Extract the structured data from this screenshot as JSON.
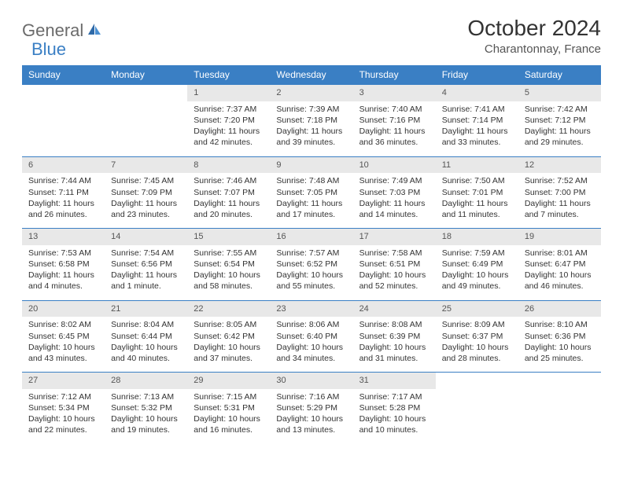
{
  "logo": {
    "general": "General",
    "blue": "Blue"
  },
  "title": "October 2024",
  "location": "Charantonnay, France",
  "colors": {
    "header_bg": "#3a7fc4",
    "header_fg": "#ffffff",
    "daynum_bg": "#e8e8e8",
    "rule": "#3a7fc4",
    "logo_gray": "#6b6b6b",
    "logo_blue": "#3a7fc4"
  },
  "weekdays": [
    "Sunday",
    "Monday",
    "Tuesday",
    "Wednesday",
    "Thursday",
    "Friday",
    "Saturday"
  ],
  "weeks": [
    [
      {
        "n": "",
        "l1": "",
        "l2": "",
        "l3": "",
        "l4": "",
        "empty": true
      },
      {
        "n": "",
        "l1": "",
        "l2": "",
        "l3": "",
        "l4": "",
        "empty": true
      },
      {
        "n": "1",
        "l1": "Sunrise: 7:37 AM",
        "l2": "Sunset: 7:20 PM",
        "l3": "Daylight: 11 hours",
        "l4": "and 42 minutes."
      },
      {
        "n": "2",
        "l1": "Sunrise: 7:39 AM",
        "l2": "Sunset: 7:18 PM",
        "l3": "Daylight: 11 hours",
        "l4": "and 39 minutes."
      },
      {
        "n": "3",
        "l1": "Sunrise: 7:40 AM",
        "l2": "Sunset: 7:16 PM",
        "l3": "Daylight: 11 hours",
        "l4": "and 36 minutes."
      },
      {
        "n": "4",
        "l1": "Sunrise: 7:41 AM",
        "l2": "Sunset: 7:14 PM",
        "l3": "Daylight: 11 hours",
        "l4": "and 33 minutes."
      },
      {
        "n": "5",
        "l1": "Sunrise: 7:42 AM",
        "l2": "Sunset: 7:12 PM",
        "l3": "Daylight: 11 hours",
        "l4": "and 29 minutes."
      }
    ],
    [
      {
        "n": "6",
        "l1": "Sunrise: 7:44 AM",
        "l2": "Sunset: 7:11 PM",
        "l3": "Daylight: 11 hours",
        "l4": "and 26 minutes."
      },
      {
        "n": "7",
        "l1": "Sunrise: 7:45 AM",
        "l2": "Sunset: 7:09 PM",
        "l3": "Daylight: 11 hours",
        "l4": "and 23 minutes."
      },
      {
        "n": "8",
        "l1": "Sunrise: 7:46 AM",
        "l2": "Sunset: 7:07 PM",
        "l3": "Daylight: 11 hours",
        "l4": "and 20 minutes."
      },
      {
        "n": "9",
        "l1": "Sunrise: 7:48 AM",
        "l2": "Sunset: 7:05 PM",
        "l3": "Daylight: 11 hours",
        "l4": "and 17 minutes."
      },
      {
        "n": "10",
        "l1": "Sunrise: 7:49 AM",
        "l2": "Sunset: 7:03 PM",
        "l3": "Daylight: 11 hours",
        "l4": "and 14 minutes."
      },
      {
        "n": "11",
        "l1": "Sunrise: 7:50 AM",
        "l2": "Sunset: 7:01 PM",
        "l3": "Daylight: 11 hours",
        "l4": "and 11 minutes."
      },
      {
        "n": "12",
        "l1": "Sunrise: 7:52 AM",
        "l2": "Sunset: 7:00 PM",
        "l3": "Daylight: 11 hours",
        "l4": "and 7 minutes."
      }
    ],
    [
      {
        "n": "13",
        "l1": "Sunrise: 7:53 AM",
        "l2": "Sunset: 6:58 PM",
        "l3": "Daylight: 11 hours",
        "l4": "and 4 minutes."
      },
      {
        "n": "14",
        "l1": "Sunrise: 7:54 AM",
        "l2": "Sunset: 6:56 PM",
        "l3": "Daylight: 11 hours",
        "l4": "and 1 minute."
      },
      {
        "n": "15",
        "l1": "Sunrise: 7:55 AM",
        "l2": "Sunset: 6:54 PM",
        "l3": "Daylight: 10 hours",
        "l4": "and 58 minutes."
      },
      {
        "n": "16",
        "l1": "Sunrise: 7:57 AM",
        "l2": "Sunset: 6:52 PM",
        "l3": "Daylight: 10 hours",
        "l4": "and 55 minutes."
      },
      {
        "n": "17",
        "l1": "Sunrise: 7:58 AM",
        "l2": "Sunset: 6:51 PM",
        "l3": "Daylight: 10 hours",
        "l4": "and 52 minutes."
      },
      {
        "n": "18",
        "l1": "Sunrise: 7:59 AM",
        "l2": "Sunset: 6:49 PM",
        "l3": "Daylight: 10 hours",
        "l4": "and 49 minutes."
      },
      {
        "n": "19",
        "l1": "Sunrise: 8:01 AM",
        "l2": "Sunset: 6:47 PM",
        "l3": "Daylight: 10 hours",
        "l4": "and 46 minutes."
      }
    ],
    [
      {
        "n": "20",
        "l1": "Sunrise: 8:02 AM",
        "l2": "Sunset: 6:45 PM",
        "l3": "Daylight: 10 hours",
        "l4": "and 43 minutes."
      },
      {
        "n": "21",
        "l1": "Sunrise: 8:04 AM",
        "l2": "Sunset: 6:44 PM",
        "l3": "Daylight: 10 hours",
        "l4": "and 40 minutes."
      },
      {
        "n": "22",
        "l1": "Sunrise: 8:05 AM",
        "l2": "Sunset: 6:42 PM",
        "l3": "Daylight: 10 hours",
        "l4": "and 37 minutes."
      },
      {
        "n": "23",
        "l1": "Sunrise: 8:06 AM",
        "l2": "Sunset: 6:40 PM",
        "l3": "Daylight: 10 hours",
        "l4": "and 34 minutes."
      },
      {
        "n": "24",
        "l1": "Sunrise: 8:08 AM",
        "l2": "Sunset: 6:39 PM",
        "l3": "Daylight: 10 hours",
        "l4": "and 31 minutes."
      },
      {
        "n": "25",
        "l1": "Sunrise: 8:09 AM",
        "l2": "Sunset: 6:37 PM",
        "l3": "Daylight: 10 hours",
        "l4": "and 28 minutes."
      },
      {
        "n": "26",
        "l1": "Sunrise: 8:10 AM",
        "l2": "Sunset: 6:36 PM",
        "l3": "Daylight: 10 hours",
        "l4": "and 25 minutes."
      }
    ],
    [
      {
        "n": "27",
        "l1": "Sunrise: 7:12 AM",
        "l2": "Sunset: 5:34 PM",
        "l3": "Daylight: 10 hours",
        "l4": "and 22 minutes."
      },
      {
        "n": "28",
        "l1": "Sunrise: 7:13 AM",
        "l2": "Sunset: 5:32 PM",
        "l3": "Daylight: 10 hours",
        "l4": "and 19 minutes."
      },
      {
        "n": "29",
        "l1": "Sunrise: 7:15 AM",
        "l2": "Sunset: 5:31 PM",
        "l3": "Daylight: 10 hours",
        "l4": "and 16 minutes."
      },
      {
        "n": "30",
        "l1": "Sunrise: 7:16 AM",
        "l2": "Sunset: 5:29 PM",
        "l3": "Daylight: 10 hours",
        "l4": "and 13 minutes."
      },
      {
        "n": "31",
        "l1": "Sunrise: 7:17 AM",
        "l2": "Sunset: 5:28 PM",
        "l3": "Daylight: 10 hours",
        "l4": "and 10 minutes."
      },
      {
        "n": "",
        "l1": "",
        "l2": "",
        "l3": "",
        "l4": "",
        "empty": true
      },
      {
        "n": "",
        "l1": "",
        "l2": "",
        "l3": "",
        "l4": "",
        "empty": true
      }
    ]
  ]
}
